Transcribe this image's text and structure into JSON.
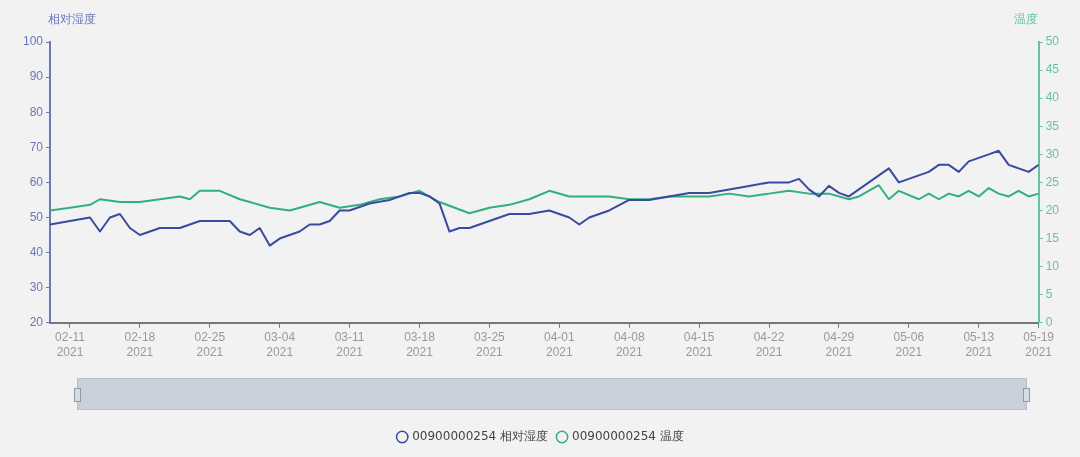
{
  "chart_data": {
    "type": "line",
    "ylabel": "相对湿度",
    "y2label": "温度",
    "xlim": [
      "2021-02-09",
      "2021-05-19"
    ],
    "xticks": [
      {
        "value": "2021-02-11",
        "label": "02-11\n2021"
      },
      {
        "value": "2021-02-18",
        "label": "02-18\n2021"
      },
      {
        "value": "2021-02-25",
        "label": "02-25\n2021"
      },
      {
        "value": "2021-03-04",
        "label": "03-04\n2021"
      },
      {
        "value": "2021-03-11",
        "label": "03-11\n2021"
      },
      {
        "value": "2021-03-18",
        "label": "03-18\n2021"
      },
      {
        "value": "2021-03-25",
        "label": "03-25\n2021"
      },
      {
        "value": "2021-04-01",
        "label": "04-01\n2021"
      },
      {
        "value": "2021-04-08",
        "label": "04-08\n2021"
      },
      {
        "value": "2021-04-15",
        "label": "04-15\n2021"
      },
      {
        "value": "2021-04-22",
        "label": "04-22\n2021"
      },
      {
        "value": "2021-04-29",
        "label": "04-29\n2021"
      },
      {
        "value": "2021-05-06",
        "label": "05-06\n2021"
      },
      {
        "value": "2021-05-13",
        "label": "05-13\n2021"
      },
      {
        "value": "2021-05-19",
        "label": "05-19\n2021"
      }
    ],
    "ylim": [
      20,
      100
    ],
    "yticks": [
      20,
      30,
      40,
      50,
      60,
      70,
      80,
      90,
      100
    ],
    "y2lim": [
      0,
      50
    ],
    "y2ticks": [
      0,
      5,
      10,
      15,
      20,
      25,
      30,
      35,
      40,
      45,
      50
    ],
    "grid": false,
    "legend": "bottom",
    "marker": "none",
    "line_style": "solid",
    "series": [
      {
        "name": "00900000254 相对湿度",
        "color": "#3a4aa0",
        "x": [
          "2021-02-09",
          "2021-02-11",
          "2021-02-13",
          "2021-02-14",
          "2021-02-15",
          "2021-02-16",
          "2021-02-17",
          "2021-02-18",
          "2021-02-19",
          "2021-02-20",
          "2021-02-22",
          "2021-02-23",
          "2021-02-24",
          "2021-02-27",
          "2021-02-28",
          "2021-03-01",
          "2021-03-02",
          "2021-03-03",
          "2021-03-04",
          "2021-03-05",
          "2021-03-06",
          "2021-03-07",
          "2021-03-08",
          "2021-03-09",
          "2021-03-10",
          "2021-03-11",
          "2021-03-13",
          "2021-03-15",
          "2021-03-17",
          "2021-03-18",
          "2021-03-19",
          "2021-03-20",
          "2021-03-21",
          "2021-03-22",
          "2021-03-23",
          "2021-03-25",
          "2021-03-27",
          "2021-03-29",
          "2021-03-31",
          "2021-04-02",
          "2021-04-03",
          "2021-04-04",
          "2021-04-06",
          "2021-04-08",
          "2021-04-10",
          "2021-04-12",
          "2021-04-14",
          "2021-04-16",
          "2021-04-18",
          "2021-04-20",
          "2021-04-22",
          "2021-04-24",
          "2021-04-25",
          "2021-04-26",
          "2021-04-27",
          "2021-04-28",
          "2021-04-29",
          "2021-04-30",
          "2021-05-01",
          "2021-05-02",
          "2021-05-03",
          "2021-05-04",
          "2021-05-05",
          "2021-05-06",
          "2021-05-07",
          "2021-05-08",
          "2021-05-09",
          "2021-05-10",
          "2021-05-11",
          "2021-05-12",
          "2021-05-13",
          "2021-05-14",
          "2021-05-15",
          "2021-05-16",
          "2021-05-17",
          "2021-05-18",
          "2021-05-19"
        ],
        "values": [
          48,
          49,
          50,
          46,
          50,
          51,
          47,
          45,
          46,
          47,
          47,
          48,
          49,
          49,
          46,
          45,
          47,
          42,
          44,
          45,
          46,
          48,
          48,
          49,
          52,
          52,
          54,
          55,
          57,
          57,
          56,
          54,
          46,
          47,
          47,
          49,
          51,
          51,
          52,
          50,
          48,
          50,
          52,
          55,
          55,
          56,
          57,
          57,
          58,
          59,
          60,
          60,
          61,
          58,
          56,
          59,
          57,
          56,
          58,
          60,
          62,
          64,
          60,
          61,
          62,
          63,
          65,
          65,
          63,
          66,
          67,
          68,
          69,
          65,
          64,
          63,
          65
        ]
      },
      {
        "name": "00900000254 温度",
        "color": "#2fb07d",
        "axis": "y2",
        "x": [
          "2021-02-09",
          "2021-02-11",
          "2021-02-13",
          "2021-02-14",
          "2021-02-16",
          "2021-02-18",
          "2021-02-20",
          "2021-02-22",
          "2021-02-23",
          "2021-02-24",
          "2021-02-26",
          "2021-02-28",
          "2021-03-01",
          "2021-03-03",
          "2021-03-05",
          "2021-03-06",
          "2021-03-08",
          "2021-03-10",
          "2021-03-12",
          "2021-03-14",
          "2021-03-16",
          "2021-03-18",
          "2021-03-20",
          "2021-03-23",
          "2021-03-25",
          "2021-03-27",
          "2021-03-29",
          "2021-03-31",
          "2021-04-02",
          "2021-04-04",
          "2021-04-06",
          "2021-04-08",
          "2021-04-10",
          "2021-04-12",
          "2021-04-14",
          "2021-04-16",
          "2021-04-18",
          "2021-04-20",
          "2021-04-22",
          "2021-04-24",
          "2021-04-26",
          "2021-04-28",
          "2021-04-30",
          "2021-05-01",
          "2021-05-03",
          "2021-05-04",
          "2021-05-05",
          "2021-05-07",
          "2021-05-08",
          "2021-05-09",
          "2021-05-10",
          "2021-05-11",
          "2021-05-12",
          "2021-05-13",
          "2021-05-14",
          "2021-05-15",
          "2021-05-16",
          "2021-05-17",
          "2021-05-18",
          "2021-05-19"
        ],
        "values": [
          20,
          20.5,
          21,
          22,
          21.5,
          21.5,
          22,
          22.5,
          22,
          23.5,
          23.5,
          22,
          21.5,
          20.5,
          20,
          20.5,
          21.5,
          20.5,
          21,
          22,
          22.5,
          23.5,
          21.5,
          19.5,
          20.5,
          21,
          22,
          23.5,
          22.5,
          22.5,
          22.5,
          22,
          22,
          22.5,
          22.5,
          22.5,
          23,
          22.5,
          23,
          23.5,
          23,
          23,
          22,
          22.5,
          24.5,
          22,
          23.5,
          22,
          23,
          22,
          23,
          22.5,
          23.5,
          22.5,
          24,
          23,
          22.5,
          23.5,
          22.5,
          23
        ]
      }
    ]
  }
}
